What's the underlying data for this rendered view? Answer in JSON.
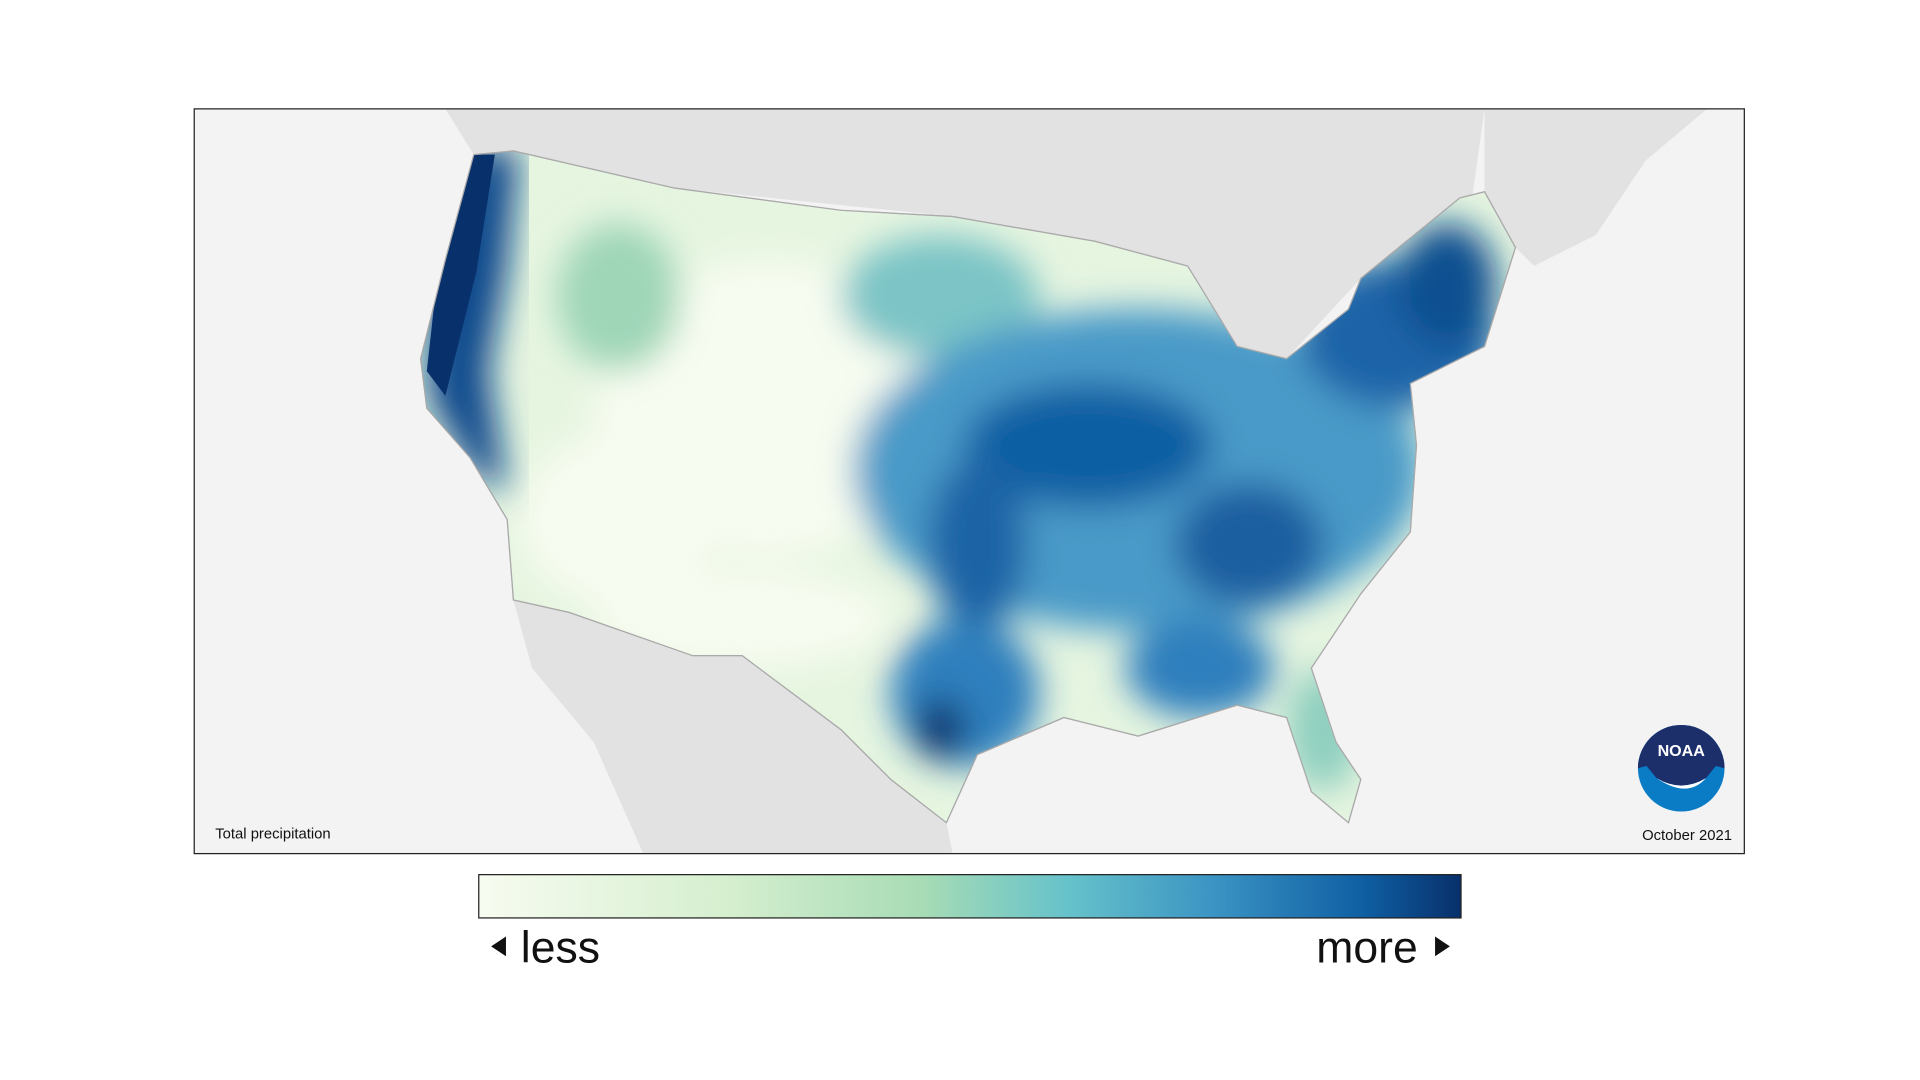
{
  "map": {
    "caption": "Total precipitation",
    "date": "October 2021",
    "logo": "NOAA"
  },
  "legend": {
    "low": "less",
    "high": "more"
  }
}
